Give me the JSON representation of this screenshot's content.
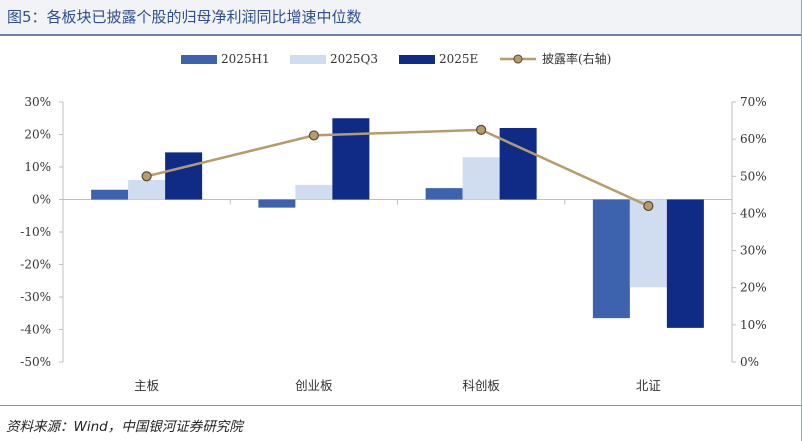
{
  "title": "图5：各板块已披露个股的归母净利润同比增速中位数",
  "source": "资料来源：Wind，中国银河证券研究院",
  "colors": {
    "h1": "#3d63ae",
    "q3": "#d0dcef",
    "e": "#0f2b85",
    "line": "#b59c6e",
    "marker_fill": "#b59c6e",
    "marker_stroke": "#5b4a2e",
    "axis": "#bfbfbf",
    "title": "#2f4f90"
  },
  "chart_data": {
    "type": "bar",
    "categories": [
      "主板",
      "创业板",
      "科创板",
      "北证"
    ],
    "series": [
      {
        "name": "2025H1",
        "values": [
          3.0,
          -2.5,
          3.5,
          -36.5
        ],
        "color_key": "h1"
      },
      {
        "name": "2025Q3",
        "values": [
          6.0,
          4.5,
          13.0,
          -27.0
        ],
        "color_key": "q3"
      },
      {
        "name": "2025E",
        "values": [
          14.5,
          25.0,
          22.0,
          -39.5
        ],
        "color_key": "e"
      }
    ],
    "line_series": {
      "name": "披露率(右轴)",
      "values": [
        50.0,
        61.0,
        62.5,
        42.0
      ],
      "axis": "right"
    },
    "ylim": [
      -50,
      30
    ],
    "yticks": [
      30,
      20,
      10,
      0,
      -10,
      -20,
      -30,
      -40,
      -50
    ],
    "ytick_labels": [
      "30%",
      "20%",
      "10%",
      "0%",
      "-10%",
      "-20%",
      "-30%",
      "-40%",
      "-50%"
    ],
    "y2lim": [
      0,
      70
    ],
    "y2ticks": [
      70,
      60,
      50,
      40,
      30,
      20,
      10,
      0
    ],
    "y2tick_labels": [
      "70%",
      "60%",
      "50%",
      "40%",
      "30%",
      "20%",
      "10%",
      "0%"
    ],
    "legend": [
      "2025H1",
      "2025Q3",
      "2025E",
      "披露率(右轴)"
    ],
    "legend_position": "top-center",
    "grid": false
  }
}
